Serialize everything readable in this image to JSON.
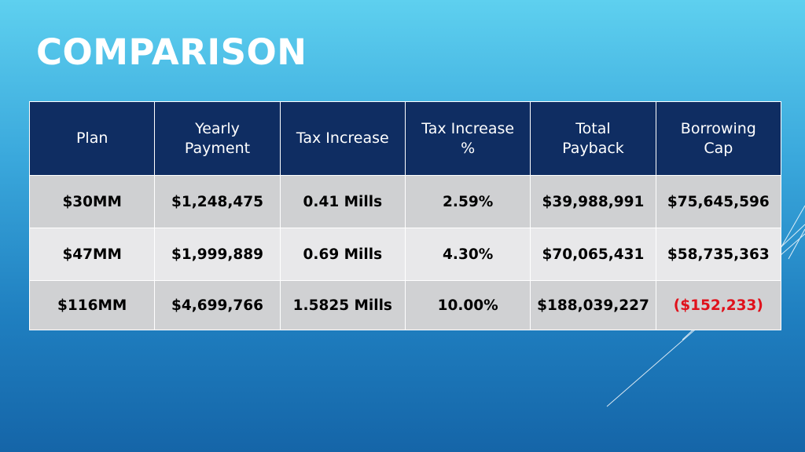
{
  "slide": {
    "title": "COMPARISON"
  },
  "table": {
    "headers": [
      [
        "Plan"
      ],
      [
        "Yearly",
        "Payment"
      ],
      [
        "Tax Increase"
      ],
      [
        "Tax Increase",
        "%"
      ],
      [
        "Total",
        "Payback"
      ],
      [
        "Borrowing",
        "Cap"
      ]
    ],
    "rows": [
      [
        "$30MM",
        "$1,248,475",
        "0.41 Mills",
        "2.59%",
        "$39,988,991",
        "$75,645,596"
      ],
      [
        "$47MM",
        "$1,999,889",
        "0.69 Mills",
        "4.30%",
        "$70,065,431",
        "$58,735,363"
      ],
      [
        "$116MM",
        "$4,699,766",
        "1.5825 Mills",
        "10.00%",
        "$188,039,227",
        "($152,233)"
      ]
    ]
  },
  "colors": {
    "header_bg": "#0f2d62",
    "negative_value": "#e0111b",
    "background_top": "#5ed0ef",
    "background_bottom": "#1565a8"
  }
}
